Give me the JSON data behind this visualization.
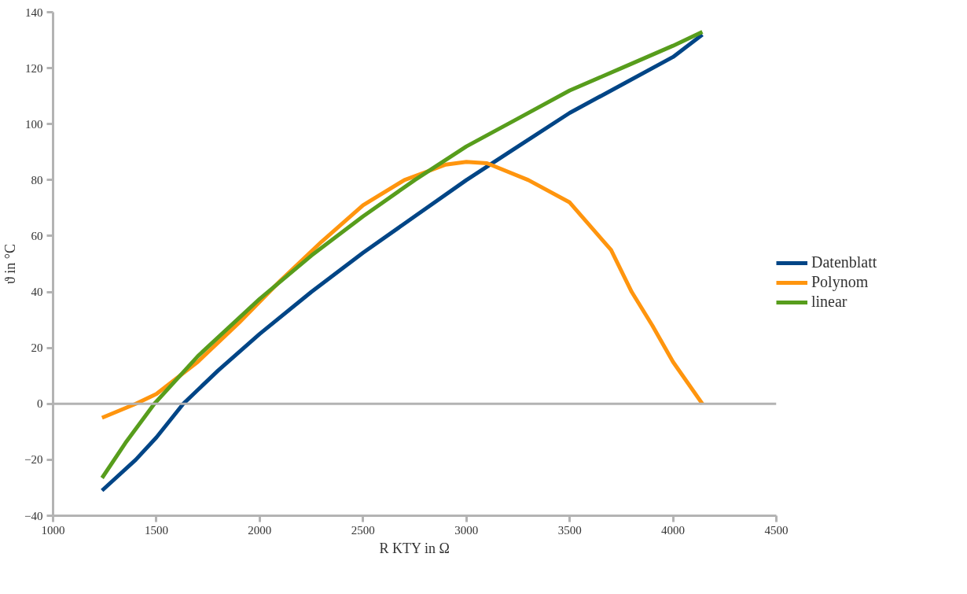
{
  "chart_data": {
    "type": "line",
    "xlabel": "R KTY in Ω",
    "ylabel": "ϑ in °C",
    "xlim": [
      1000,
      4500
    ],
    "xticks": [
      1000,
      1500,
      2000,
      2500,
      3000,
      3500,
      4000,
      4500
    ],
    "ylim": [
      -40,
      140
    ],
    "yticks": [
      -40,
      -20,
      0,
      20,
      40,
      60,
      80,
      100,
      120,
      140
    ],
    "grid": false,
    "legend": "right",
    "marker": "none",
    "line_style": "solid",
    "ref_lines": [
      {
        "axis": "y",
        "value": 0,
        "color": "#b3b3b3"
      }
    ],
    "series": [
      {
        "name": "Datenblatt",
        "color": "#004586",
        "x": [
          1237,
          1400,
          1500,
          1630,
          1800,
          2000,
          2250,
          2500,
          2750,
          3000,
          3250,
          3500,
          3750,
          4000,
          4142
        ],
        "values": [
          -31,
          -20,
          -12,
          0,
          12,
          25,
          40,
          54,
          67,
          80,
          92,
          104,
          114,
          124,
          132
        ]
      },
      {
        "name": "Polynom",
        "color": "#ff950e",
        "x": [
          1237,
          1400,
          1500,
          1700,
          1900,
          2100,
          2300,
          2500,
          2700,
          2900,
          3000,
          3100,
          3300,
          3500,
          3700,
          3800,
          3900,
          4000,
          4142
        ],
        "values": [
          -5,
          0,
          3.5,
          15,
          29,
          44,
          58,
          71,
          80,
          85.5,
          86.5,
          86,
          80,
          72,
          55,
          40,
          28,
          15,
          0
        ]
      },
      {
        "name": "linear",
        "color": "#579d1c",
        "x": [
          1237,
          1350,
          1490,
          1700,
          2000,
          2250,
          2500,
          2750,
          3000,
          3250,
          3500,
          3750,
          4000,
          4142
        ],
        "values": [
          -26.5,
          -14,
          0,
          17,
          37.5,
          53,
          67,
          80,
          92,
          102,
          112,
          120,
          128,
          133
        ]
      }
    ]
  }
}
